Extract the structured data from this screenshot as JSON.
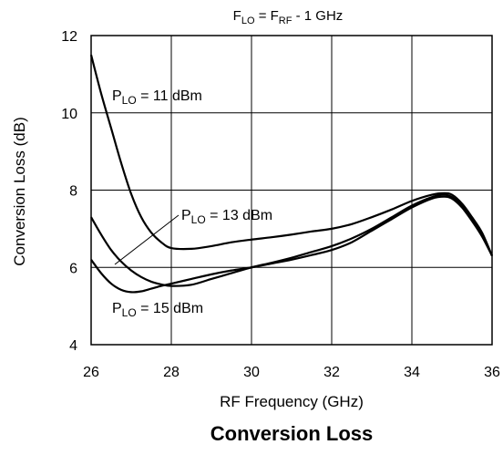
{
  "chart_data": {
    "type": "line",
    "title": {
      "f1": "F",
      "f1_sub": "LO",
      "mid": " = F",
      "f2_sub": "RF",
      "tail": " - 1 GHz"
    },
    "caption": "Conversion Loss",
    "xlabel": "RF Frequency (GHz)",
    "ylabel": "Conversion Loss (dB)",
    "xlim": [
      26,
      36
    ],
    "ylim": [
      4,
      12
    ],
    "xticks": [
      "26",
      "28",
      "30",
      "32",
      "34",
      "36"
    ],
    "yticks": [
      "4",
      "6",
      "8",
      "10",
      "12"
    ],
    "grid": true,
    "series": [
      {
        "name_main": "P",
        "name_sub": "LO",
        "name_rest": " = 11 dBm",
        "x": [
          26,
          26.25,
          26.5,
          26.75,
          27,
          27.25,
          27.5,
          27.75,
          28,
          28.5,
          29,
          29.5,
          30,
          30.5,
          31,
          31.5,
          32,
          32.5,
          33,
          33.5,
          34,
          34.5,
          34.8,
          35,
          35.25,
          35.5,
          35.75,
          36
        ],
        "y": [
          11.5,
          10.5,
          9.6,
          8.7,
          7.9,
          7.3,
          6.9,
          6.65,
          6.5,
          6.48,
          6.55,
          6.65,
          6.72,
          6.78,
          6.85,
          6.93,
          7.0,
          7.12,
          7.3,
          7.5,
          7.72,
          7.88,
          7.92,
          7.88,
          7.65,
          7.3,
          6.9,
          6.3
        ]
      },
      {
        "name_main": "P",
        "name_sub": "LO",
        "name_rest": " = 13 dBm",
        "x": [
          26,
          26.25,
          26.5,
          26.75,
          27,
          27.25,
          27.5,
          27.75,
          28,
          28.5,
          29,
          29.5,
          30,
          30.5,
          31,
          31.5,
          32,
          32.5,
          33,
          33.5,
          34,
          34.5,
          34.8,
          35,
          35.25,
          35.5,
          35.75,
          36
        ],
        "y": [
          7.3,
          6.85,
          6.45,
          6.15,
          5.92,
          5.75,
          5.63,
          5.56,
          5.52,
          5.55,
          5.7,
          5.85,
          6.0,
          6.12,
          6.25,
          6.4,
          6.55,
          6.75,
          7.0,
          7.3,
          7.6,
          7.82,
          7.88,
          7.82,
          7.6,
          7.25,
          6.85,
          6.3
        ]
      },
      {
        "name_main": "P",
        "name_sub": "LO",
        "name_rest": " = 15 dBm",
        "x": [
          26,
          26.25,
          26.5,
          26.75,
          27,
          27.25,
          27.5,
          27.75,
          28,
          28.5,
          29,
          29.5,
          30,
          30.5,
          31,
          31.5,
          32,
          32.5,
          33,
          33.5,
          34,
          34.5,
          34.8,
          35,
          35.25,
          35.5,
          35.75,
          36
        ],
        "y": [
          6.2,
          5.85,
          5.58,
          5.42,
          5.36,
          5.38,
          5.45,
          5.52,
          5.58,
          5.7,
          5.82,
          5.92,
          6.0,
          6.1,
          6.2,
          6.32,
          6.45,
          6.65,
          6.95,
          7.25,
          7.55,
          7.78,
          7.83,
          7.78,
          7.55,
          7.2,
          6.8,
          6.3
        ]
      }
    ]
  }
}
